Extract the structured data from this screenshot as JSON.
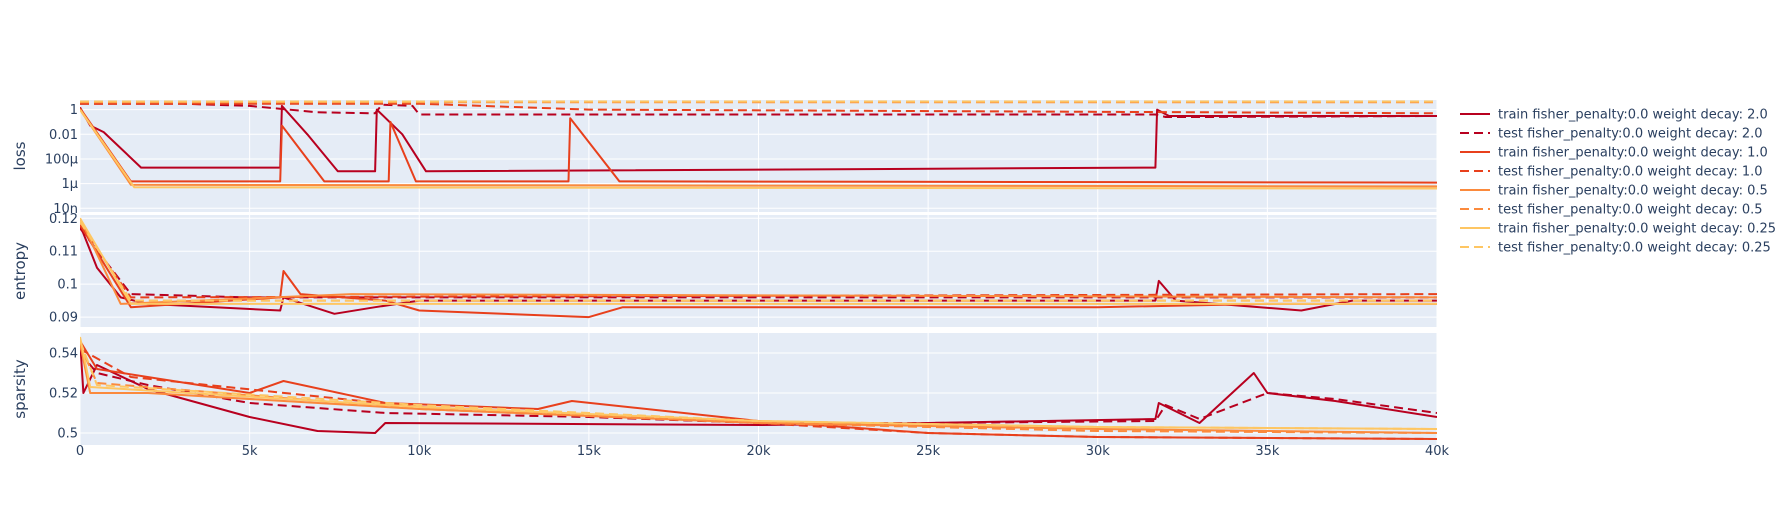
{
  "chart_data": {
    "type": "line",
    "x_axis": {
      "range": [
        0,
        40000
      ],
      "ticks": [
        0,
        5000,
        10000,
        15000,
        20000,
        25000,
        30000,
        35000,
        40000
      ],
      "tick_labels": [
        "0",
        "5k",
        "10k",
        "15k",
        "20k",
        "25k",
        "30k",
        "35k",
        "40k"
      ]
    },
    "grid": true,
    "legend_position": "right",
    "legend": [
      {
        "label": "train fisher_penalty:0.0 weight decay: 2.0",
        "color": "#b8001f",
        "dash": "solid"
      },
      {
        "label": "test fisher_penalty:0.0 weight decay: 2.0",
        "color": "#b8001f",
        "dash": "dash"
      },
      {
        "label": "train fisher_penalty:0.0 weight decay: 1.0",
        "color": "#e8401c",
        "dash": "solid"
      },
      {
        "label": "test fisher_penalty:0.0 weight decay: 1.0",
        "color": "#e8401c",
        "dash": "dash"
      },
      {
        "label": "train fisher_penalty:0.0 weight decay: 0.5",
        "color": "#fb8a3d",
        "dash": "solid"
      },
      {
        "label": "test fisher_penalty:0.0 weight decay: 0.5",
        "color": "#fb8a3d",
        "dash": "dash"
      },
      {
        "label": "train fisher_penalty:0.0 weight decay: 0.25",
        "color": "#fec663",
        "dash": "solid"
      },
      {
        "label": "test fisher_penalty:0.0 weight decay: 0.25",
        "color": "#fec663",
        "dash": "dash"
      }
    ],
    "panels": [
      {
        "ylabel": "loss",
        "scale": "log",
        "ylim": [
          5e-09,
          6
        ],
        "ticks": [
          1,
          0.01,
          0.0001,
          1e-06,
          1e-08
        ],
        "tick_labels": [
          "1",
          "0.01",
          "100μ",
          "1μ",
          "10n"
        ],
        "series": [
          {
            "ref": 0,
            "points": [
              [
                0,
                1.5
              ],
              [
                300,
                0.05
              ],
              [
                700,
                0.015
              ],
              [
                1800,
                2e-05
              ],
              [
                5900,
                2e-05
              ],
              [
                5950,
                2
              ],
              [
                6700,
                0.01
              ],
              [
                7600,
                1e-05
              ],
              [
                8700,
                1e-05
              ],
              [
                8750,
                1
              ],
              [
                9500,
                0.01
              ],
              [
                10200,
                1e-05
              ],
              [
                31700,
                2e-05
              ],
              [
                31750,
                1
              ],
              [
                32100,
                0.3
              ],
              [
                40000,
                0.3
              ]
            ]
          },
          {
            "ref": 1,
            "points": [
              [
                0,
                3
              ],
              [
                3000,
                3
              ],
              [
                5000,
                2
              ],
              [
                7000,
                0.6
              ],
              [
                8700,
                0.5
              ],
              [
                8900,
                2.5
              ],
              [
                9800,
                2
              ],
              [
                10000,
                0.4
              ],
              [
                31700,
                0.4
              ],
              [
                32000,
                0.25
              ],
              [
                33000,
                0.25
              ],
              [
                40000,
                0.3
              ]
            ]
          },
          {
            "ref": 2,
            "points": [
              [
                0,
                1.3
              ],
              [
                1500,
                1.5e-06
              ],
              [
                5900,
                1.5e-06
              ],
              [
                5950,
                0.05
              ],
              [
                7200,
                1.5e-06
              ],
              [
                9100,
                1.5e-06
              ],
              [
                9150,
                0.1
              ],
              [
                9900,
                1.5e-06
              ],
              [
                14400,
                1.5e-06
              ],
              [
                14450,
                0.2
              ],
              [
                15900,
                1.5e-06
              ],
              [
                40000,
                1.2e-06
              ]
            ]
          },
          {
            "ref": 3,
            "points": [
              [
                0,
                3
              ],
              [
                10000,
                3
              ],
              [
                15000,
                1
              ],
              [
                40000,
                0.5
              ]
            ]
          },
          {
            "ref": 4,
            "points": [
              [
                0,
                1
              ],
              [
                1500,
                8e-07
              ],
              [
                40000,
                6e-07
              ]
            ]
          },
          {
            "ref": 5,
            "points": [
              [
                0,
                4
              ],
              [
                40000,
                4
              ]
            ]
          },
          {
            "ref": 6,
            "points": [
              [
                0,
                1
              ],
              [
                1600,
                5e-07
              ],
              [
                40000,
                4e-07
              ]
            ]
          },
          {
            "ref": 7,
            "points": [
              [
                0,
                4.5
              ],
              [
                40000,
                4.5
              ]
            ]
          }
        ]
      },
      {
        "ylabel": "entropy",
        "scale": "linear",
        "ylim": [
          0.087,
          0.121
        ],
        "ticks": [
          0.12,
          0.11,
          0.1,
          0.09
        ],
        "tick_labels": [
          "0.12",
          "0.11",
          "0.1",
          "0.09"
        ],
        "series": [
          {
            "ref": 0,
            "points": [
              [
                0,
                0.118
              ],
              [
                500,
                0.105
              ],
              [
                1200,
                0.096
              ],
              [
                2000,
                0.094
              ],
              [
                5900,
                0.092
              ],
              [
                6000,
                0.096
              ],
              [
                7500,
                0.091
              ],
              [
                8700,
                0.093
              ],
              [
                10000,
                0.095
              ],
              [
                31700,
                0.095
              ],
              [
                31800,
                0.101
              ],
              [
                32300,
                0.095
              ],
              [
                36000,
                0.092
              ],
              [
                37500,
                0.095
              ],
              [
                40000,
                0.095
              ]
            ]
          },
          {
            "ref": 1,
            "points": [
              [
                0,
                0.117
              ],
              [
                1500,
                0.097
              ],
              [
                5000,
                0.096
              ],
              [
                40000,
                0.096
              ]
            ]
          },
          {
            "ref": 2,
            "points": [
              [
                0,
                0.118
              ],
              [
                1500,
                0.093
              ],
              [
                5900,
                0.096
              ],
              [
                6000,
                0.104
              ],
              [
                6500,
                0.097
              ],
              [
                9000,
                0.095
              ],
              [
                10000,
                0.092
              ],
              [
                15000,
                0.09
              ],
              [
                16000,
                0.093
              ],
              [
                25000,
                0.093
              ],
              [
                30000,
                0.093
              ],
              [
                35000,
                0.094
              ],
              [
                40000,
                0.094
              ]
            ]
          },
          {
            "ref": 3,
            "points": [
              [
                0,
                0.118
              ],
              [
                1500,
                0.096
              ],
              [
                40000,
                0.097
              ]
            ]
          },
          {
            "ref": 4,
            "points": [
              [
                0,
                0.12
              ],
              [
                1200,
                0.094
              ],
              [
                8000,
                0.097
              ],
              [
                40000,
                0.096
              ]
            ]
          },
          {
            "ref": 5,
            "points": [
              [
                0,
                0.119
              ],
              [
                1500,
                0.095
              ],
              [
                40000,
                0.095
              ]
            ]
          },
          {
            "ref": 6,
            "points": [
              [
                0,
                0.12
              ],
              [
                1500,
                0.094
              ],
              [
                40000,
                0.094
              ]
            ]
          },
          {
            "ref": 7,
            "points": [
              [
                0,
                0.119
              ],
              [
                1500,
                0.095
              ],
              [
                40000,
                0.095
              ]
            ]
          }
        ]
      },
      {
        "ylabel": "sparsity",
        "scale": "linear",
        "ylim": [
          0.494,
          0.55
        ],
        "ticks": [
          0.54,
          0.52,
          0.5
        ],
        "tick_labels": [
          "0.54",
          "0.52",
          "0.5"
        ],
        "series": [
          {
            "ref": 0,
            "points": [
              [
                0,
                0.547
              ],
              [
                100,
                0.52
              ],
              [
                500,
                0.534
              ],
              [
                2000,
                0.522
              ],
              [
                5000,
                0.508
              ],
              [
                7000,
                0.501
              ],
              [
                8700,
                0.5
              ],
              [
                9000,
                0.505
              ],
              [
                20000,
                0.504
              ],
              [
                25000,
                0.505
              ],
              [
                31700,
                0.507
              ],
              [
                31800,
                0.515
              ],
              [
                33000,
                0.505
              ],
              [
                34600,
                0.53
              ],
              [
                35000,
                0.52
              ],
              [
                37000,
                0.516
              ],
              [
                40000,
                0.508
              ]
            ]
          },
          {
            "ref": 1,
            "points": [
              [
                0,
                0.54
              ],
              [
                500,
                0.53
              ],
              [
                2000,
                0.524
              ],
              [
                5000,
                0.515
              ],
              [
                9000,
                0.51
              ],
              [
                15000,
                0.508
              ],
              [
                20000,
                0.505
              ],
              [
                25000,
                0.505
              ],
              [
                31700,
                0.506
              ],
              [
                32000,
                0.514
              ],
              [
                33000,
                0.507
              ],
              [
                35000,
                0.52
              ],
              [
                37000,
                0.517
              ],
              [
                40000,
                0.51
              ]
            ]
          },
          {
            "ref": 2,
            "points": [
              [
                0,
                0.546
              ],
              [
                500,
                0.532
              ],
              [
                5000,
                0.52
              ],
              [
                6000,
                0.526
              ],
              [
                9000,
                0.515
              ],
              [
                13500,
                0.512
              ],
              [
                14500,
                0.516
              ],
              [
                20000,
                0.506
              ],
              [
                25000,
                0.5
              ],
              [
                30000,
                0.498
              ],
              [
                40000,
                0.497
              ]
            ]
          },
          {
            "ref": 3,
            "points": [
              [
                0,
                0.542
              ],
              [
                1500,
                0.528
              ],
              [
                10000,
                0.513
              ],
              [
                20000,
                0.505
              ],
              [
                25000,
                0.5
              ],
              [
                30000,
                0.498
              ],
              [
                40000,
                0.497
              ]
            ]
          },
          {
            "ref": 4,
            "points": [
              [
                0,
                0.545
              ],
              [
                300,
                0.52
              ],
              [
                2000,
                0.52
              ],
              [
                10000,
                0.512
              ],
              [
                20000,
                0.505
              ],
              [
                30000,
                0.502
              ],
              [
                40000,
                0.5
              ]
            ]
          },
          {
            "ref": 5,
            "points": [
              [
                0,
                0.544
              ],
              [
                500,
                0.525
              ],
              [
                10000,
                0.512
              ],
              [
                20000,
                0.505
              ],
              [
                30000,
                0.501
              ],
              [
                40000,
                0.5
              ]
            ]
          },
          {
            "ref": 6,
            "points": [
              [
                0,
                0.548
              ],
              [
                300,
                0.523
              ],
              [
                10000,
                0.513
              ],
              [
                20000,
                0.506
              ],
              [
                30000,
                0.503
              ],
              [
                40000,
                0.502
              ]
            ]
          },
          {
            "ref": 7,
            "points": [
              [
                0,
                0.546
              ],
              [
                500,
                0.524
              ],
              [
                10000,
                0.514
              ],
              [
                20000,
                0.506
              ],
              [
                30000,
                0.503
              ],
              [
                40000,
                0.502
              ]
            ]
          }
        ]
      }
    ]
  }
}
